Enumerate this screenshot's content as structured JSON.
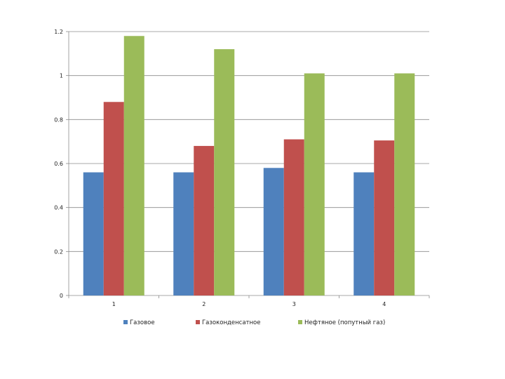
{
  "chart_data": {
    "type": "bar",
    "categories": [
      "1",
      "2",
      "3",
      "4"
    ],
    "series": [
      {
        "name": "Газовое",
        "values": [
          0.56,
          0.56,
          0.58,
          0.56
        ],
        "color": "#4f81bd"
      },
      {
        "name": "Газоконденсатное",
        "values": [
          0.88,
          0.68,
          0.71,
          0.705
        ],
        "color": "#c0504d"
      },
      {
        "name": "Нефтяное (попутный газ)",
        "values": [
          1.18,
          1.12,
          1.01,
          1.01
        ],
        "color": "#9bbb59"
      }
    ],
    "ylim": [
      0,
      1.2
    ],
    "yticks": [
      "0",
      "0.2",
      "0.4",
      "0.6",
      "0.8",
      "1",
      "1.2"
    ],
    "grid": true,
    "legend_position": "bottom"
  }
}
